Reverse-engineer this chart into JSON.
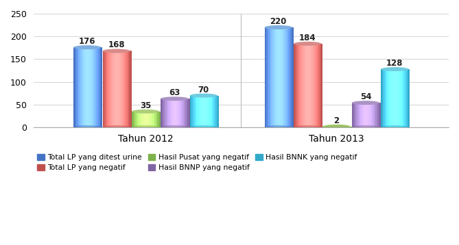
{
  "groups": [
    "Tahun 2012",
    "Tahun 2013"
  ],
  "series": [
    {
      "label": "Total LP yang ditest urine",
      "color": "#4472C4",
      "light": "#7FAEE0",
      "values": [
        176,
        220
      ]
    },
    {
      "label": "Total LP yang negatif",
      "color": "#C0504D",
      "light": "#D98B89",
      "values": [
        168,
        184
      ]
    },
    {
      "label": "Hasil Pusat yang negatif",
      "color": "#7DB14A",
      "light": "#AECF7A",
      "values": [
        35,
        2
      ]
    },
    {
      "label": "Hasil BNNP yang negatif",
      "color": "#8064A2",
      "light": "#AA93C4",
      "values": [
        63,
        54
      ]
    },
    {
      "label": "Hasil BNNK yang negatif",
      "color": "#31A9C9",
      "light": "#70CCE0",
      "values": [
        70,
        128
      ]
    }
  ],
  "legend_order": [
    0,
    1,
    2,
    3,
    4
  ],
  "legend_ncol_row1": 3,
  "ylim": [
    0,
    250
  ],
  "yticks": [
    0,
    50,
    100,
    150,
    200,
    250
  ],
  "bar_width": 0.07,
  "group_centers": [
    0.27,
    0.73
  ],
  "figsize": [
    6.69,
    3.58
  ],
  "dpi": 100,
  "label_fontsize": 8.5,
  "legend_fontsize": 7.8,
  "axis_label_fontsize": 10,
  "background_color": "#FFFFFF",
  "plot_bg": "#FFFFFF"
}
